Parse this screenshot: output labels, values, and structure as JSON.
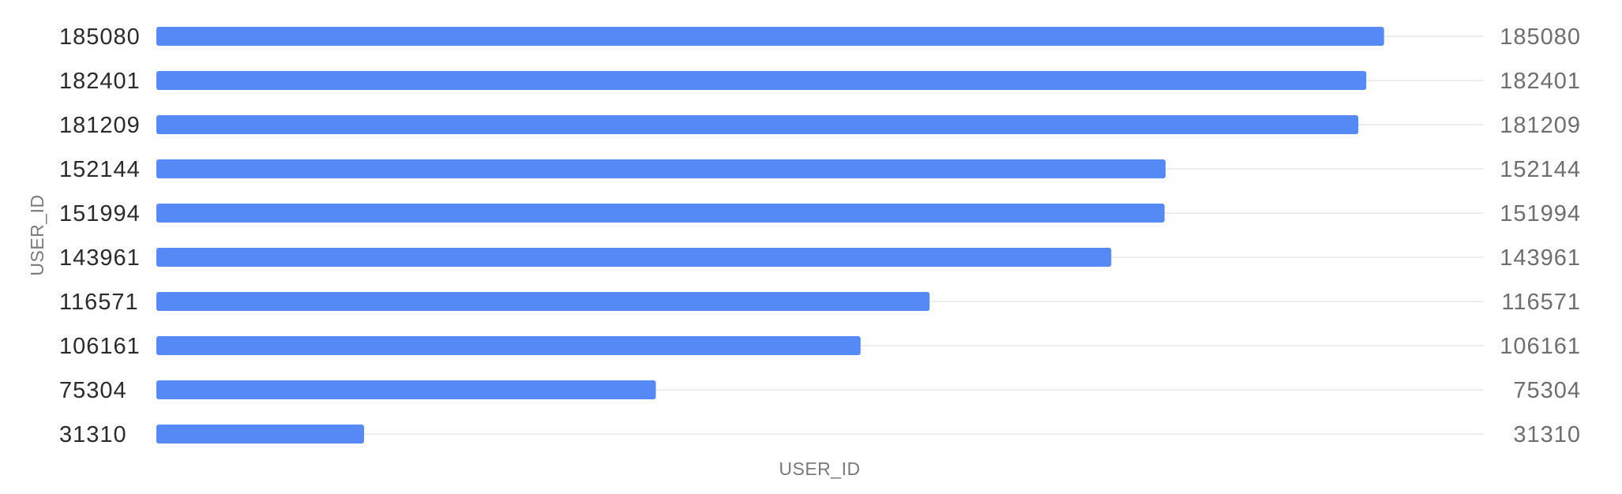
{
  "chart_data": {
    "type": "bar",
    "orientation": "horizontal",
    "categories": [
      "185080",
      "182401",
      "181209",
      "152144",
      "151994",
      "143961",
      "116571",
      "106161",
      "75304",
      "31310"
    ],
    "values": [
      185080,
      182401,
      181209,
      152144,
      151994,
      143961,
      116571,
      106161,
      75304,
      31310
    ],
    "value_labels": [
      "185080",
      "182401",
      "181209",
      "152144",
      "151994",
      "143961",
      "116571",
      "106161",
      "75304",
      "31310"
    ],
    "xlabel": "USER_ID",
    "ylabel": "USER_ID",
    "xlim": [
      0,
      200000
    ],
    "grid": true,
    "colors": {
      "bar": "#5589F5",
      "grid": "#e6e6e6"
    }
  }
}
